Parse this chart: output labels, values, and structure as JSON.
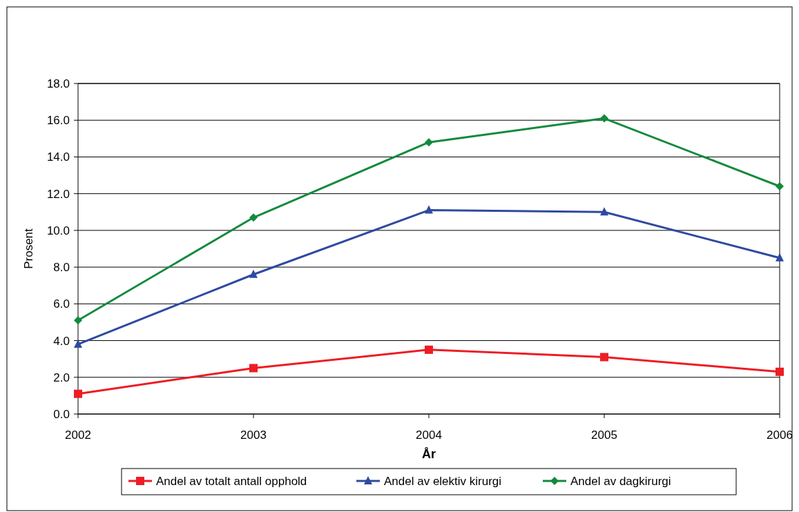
{
  "chart_data": {
    "type": "line",
    "xlabel": "År",
    "ylabel": "Prosent",
    "x": [
      2002,
      2003,
      2004,
      2005,
      2006
    ],
    "xlim": [
      2002,
      2006
    ],
    "xticks": [
      2002,
      2003,
      2004,
      2005,
      2006
    ],
    "ylim": [
      0,
      18
    ],
    "yticks": [
      {
        "value": 0,
        "label": "0.0"
      },
      {
        "value": 2,
        "label": "2.0"
      },
      {
        "value": 4,
        "label": "4.0"
      },
      {
        "value": 6,
        "label": "6.0"
      },
      {
        "value": 8,
        "label": "8.0"
      },
      {
        "value": 10,
        "label": "10.0"
      },
      {
        "value": 12,
        "label": "12.0"
      },
      {
        "value": 14,
        "label": "14.0"
      },
      {
        "value": 16,
        "label": "16.0"
      },
      {
        "value": 18,
        "label": "18.0"
      }
    ],
    "grid": "y",
    "legend": "bottom",
    "line_style": "solid",
    "series": [
      {
        "name": "Andel av totalt antall opphold",
        "color": "#ee1c24",
        "marker": "square",
        "values": [
          1.1,
          2.5,
          3.5,
          3.1,
          2.3
        ]
      },
      {
        "name": "Andel av elektiv kirurgi",
        "color": "#2e4aa0",
        "marker": "triangle",
        "values": [
          3.8,
          7.6,
          11.1,
          11.0,
          8.5
        ]
      },
      {
        "name": "Andel av dagkirurgi",
        "color": "#128a3c",
        "marker": "diamond",
        "values": [
          5.1,
          10.7,
          14.8,
          16.1,
          12.4
        ]
      }
    ]
  }
}
